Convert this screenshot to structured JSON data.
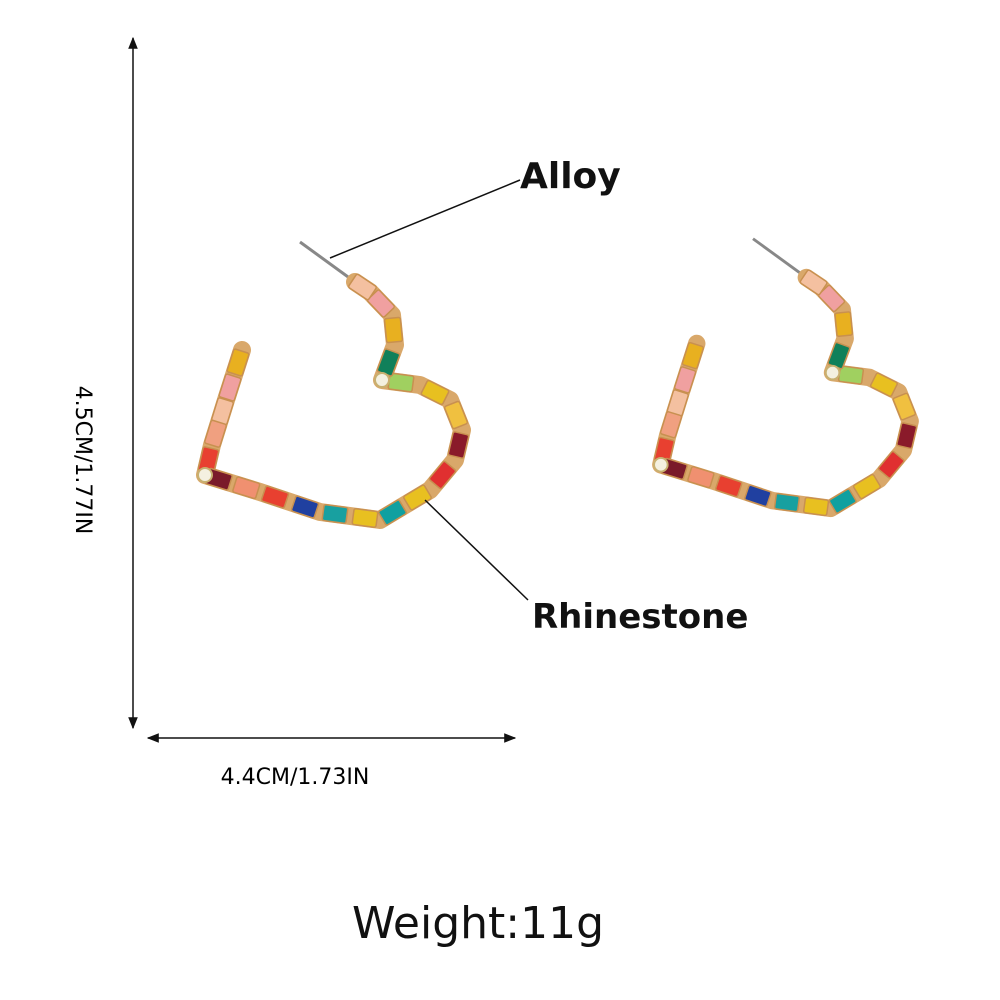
{
  "labels": {
    "alloy": "Alloy",
    "rhinestone": "Rhinestone"
  },
  "dimensions": {
    "height": "4.5CM/1.77IN",
    "width": "4.4CM/1.73IN"
  },
  "weight": "Weight:11g"
}
